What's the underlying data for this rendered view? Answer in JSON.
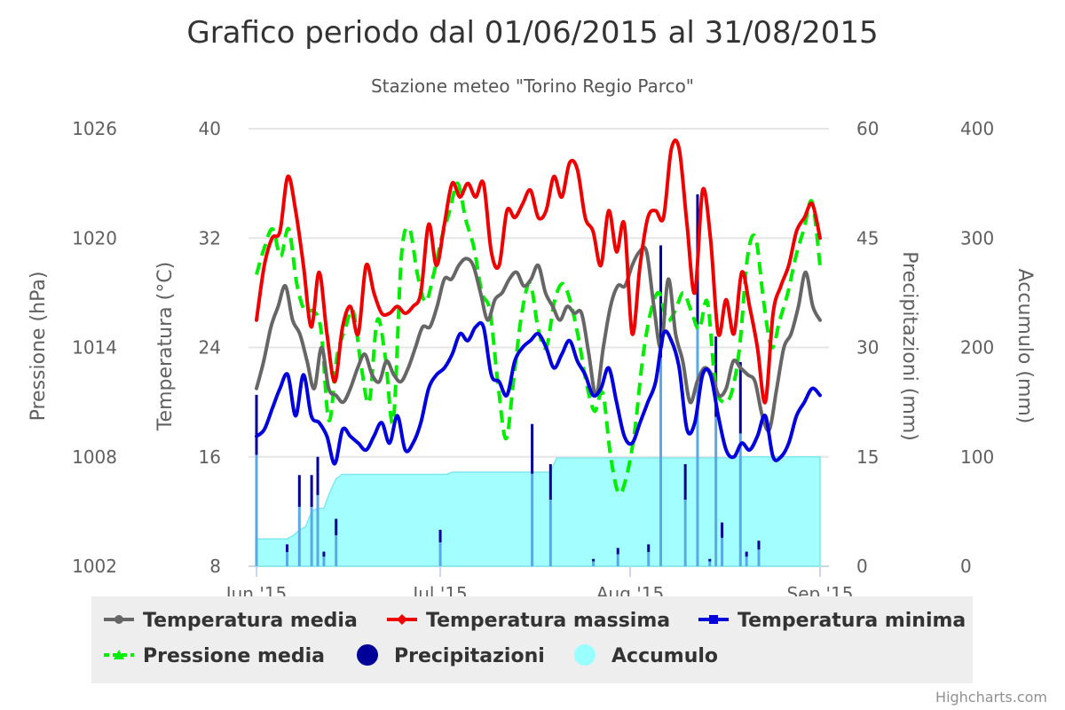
{
  "chart_data": {
    "type": "line",
    "title": "Grafico periodo dal 01/06/2015 al 31/08/2015",
    "subtitle": "Stazione meteo \"Torino Regio Parco\"",
    "credits": "Highcharts.com",
    "x_ticks": [
      "Jun '15",
      "Jul '15",
      "Aug '15",
      "Sep '15"
    ],
    "axes": {
      "pressure": {
        "title": "Pressione (hPa)",
        "min": 1002,
        "max": 1026,
        "ticks": [
          "1002",
          "1008",
          "1014",
          "1020",
          "1026"
        ]
      },
      "temperature": {
        "title": "Temperatura (°C)",
        "min": 8,
        "max": 40,
        "ticks": [
          "8",
          "16",
          "24",
          "32",
          "40"
        ]
      },
      "precipitation": {
        "title": "Precipitazioni (mm)",
        "min": 0,
        "max": 60,
        "ticks": [
          "0",
          "15",
          "30",
          "45",
          "60"
        ]
      },
      "accumulation": {
        "title": "Accumulo (mm)",
        "min": 0,
        "max": 400,
        "ticks": [
          "0",
          "100",
          "200",
          "300",
          "400"
        ]
      }
    },
    "legend": {
      "position": "bottom",
      "items": [
        "Temperatura media",
        "Temperatura massima",
        "Temperatura minima",
        "Pressione media",
        "Precipitazioni",
        "Accumulo"
      ]
    },
    "series": [
      {
        "name": "Temperatura media",
        "axis": "temperature",
        "color": "#666666",
        "values": [
          21,
          23,
          25.5,
          27,
          28.5,
          26,
          25,
          23,
          21,
          24,
          21,
          20.5,
          20,
          21,
          22.5,
          23.5,
          22,
          21.5,
          23,
          22,
          21.5,
          22.5,
          24,
          25.5,
          25.5,
          27,
          29,
          29,
          30,
          30.5,
          30,
          28,
          26,
          27.5,
          28,
          29,
          29.5,
          28.5,
          29,
          30,
          28,
          27,
          26,
          27,
          26.5,
          26.5,
          23.5,
          20.5,
          24,
          27,
          28.5,
          28.5,
          30,
          31,
          31,
          27,
          24,
          29,
          25,
          23,
          20,
          21.5,
          22.5,
          22,
          20.5,
          21,
          23,
          22.5,
          22,
          21.5,
          19,
          18,
          21,
          24,
          25,
          27,
          29.5,
          27,
          26
        ]
      },
      {
        "name": "Temperatura massima",
        "axis": "temperature",
        "color": "#ee0000",
        "values": [
          26,
          30,
          32,
          32.5,
          36.5,
          34,
          30,
          25.5,
          29.5,
          25,
          21.5,
          25.5,
          27,
          25,
          30,
          28,
          26.5,
          26.5,
          27,
          26.5,
          27,
          28,
          33,
          30,
          33,
          36,
          35,
          36,
          35,
          36,
          31,
          30,
          34,
          33.5,
          34.5,
          35.5,
          33.5,
          34,
          36.5,
          35,
          37.5,
          37,
          33.5,
          32.5,
          30,
          34,
          31,
          33,
          25,
          30,
          33.5,
          34,
          33.5,
          38.5,
          38.5,
          33,
          28,
          35.5,
          32,
          25,
          27.5,
          25,
          29.5,
          27,
          24,
          20,
          26.5,
          28.5,
          30,
          32.5,
          33.5,
          34.5,
          32
        ]
      },
      {
        "name": "Temperatura minima",
        "axis": "temperature",
        "color": "#0000dd",
        "values": [
          17.5,
          18,
          19.5,
          21,
          22,
          19,
          22,
          19,
          18.5,
          17.5,
          15.5,
          18,
          17.5,
          17,
          16.5,
          17.5,
          18.5,
          17,
          19,
          16.5,
          17,
          18.5,
          21,
          22,
          22.5,
          23.5,
          25,
          24.5,
          25.5,
          25.5,
          22,
          21.5,
          20.5,
          23,
          24,
          24.5,
          25,
          24,
          22.5,
          23.5,
          24.5,
          23,
          22,
          20.5,
          21,
          22.5,
          20,
          17.5,
          17,
          18.5,
          20,
          21.5,
          25,
          24.5,
          22.5,
          18,
          18.5,
          22,
          22,
          19,
          16.5,
          16,
          17,
          16.5,
          17.5,
          19,
          16,
          16,
          17,
          19,
          20,
          21,
          20.5
        ]
      },
      {
        "name": "Pressione media",
        "axis": "pressure",
        "color": "#00ee00",
        "dashed": true,
        "values": [
          1018,
          1019.5,
          1020.5,
          1019,
          1020.5,
          1017.5,
          1016,
          1016,
          1015,
          1010,
          1013.5,
          1015,
          1016,
          1013,
          1011,
          1015.5,
          1013.5,
          1010,
          1019,
          1020.5,
          1018,
          1016.5,
          1018,
          1020,
          1021.5,
          1023,
          1021,
          1019.5,
          1017,
          1016,
          1012,
          1009,
          1012.5,
          1016,
          1017.5,
          1015,
          1014,
          1016.5,
          1017.5,
          1016.5,
          1014.5,
          1012,
          1010.5,
          1011.5,
          1008,
          1006,
          1007,
          1009.5,
          1013.5,
          1016,
          1017,
          1015.5,
          1016,
          1017,
          1016,
          1015,
          1016.5,
          1012,
          1011,
          1011.5,
          1014,
          1019,
          1020,
          1016.5,
          1014,
          1015.5,
          1017,
          1019,
          1020.5,
          1022,
          1018.5
        ]
      },
      {
        "name": "Precipitazioni",
        "axis": "precipitation",
        "color": "#000099",
        "points": [
          [
            0,
            23.5
          ],
          [
            5,
            3
          ],
          [
            7,
            12.5
          ],
          [
            9,
            12.5
          ],
          [
            10,
            15
          ],
          [
            11,
            2
          ],
          [
            13,
            6.5
          ],
          [
            30,
            5
          ],
          [
            45,
            19.5
          ],
          [
            48,
            14
          ],
          [
            55,
            1
          ],
          [
            59,
            2.5
          ],
          [
            64,
            3
          ],
          [
            66,
            44
          ],
          [
            70,
            14
          ],
          [
            72,
            51
          ],
          [
            74,
            1
          ],
          [
            75,
            31.5
          ],
          [
            76,
            6
          ],
          [
            79,
            28
          ],
          [
            80,
            2
          ],
          [
            82,
            3.5
          ]
        ]
      },
      {
        "name": "Accumulo",
        "axis": "accumulation",
        "color": "#99ffff",
        "values": [
          25,
          25,
          25,
          25,
          25,
          25,
          28,
          33,
          36,
          50,
          53,
          53,
          68,
          80,
          84,
          84,
          84,
          84,
          84,
          84,
          84,
          84,
          84,
          84,
          84,
          84,
          84,
          84,
          84,
          84,
          84,
          84,
          86,
          86,
          86,
          86,
          86,
          86,
          86,
          86,
          86,
          86,
          86,
          86,
          86,
          86,
          86,
          86,
          86,
          99,
          99,
          99,
          99,
          99,
          99,
          99,
          99,
          99,
          99,
          99,
          99,
          99,
          99,
          99,
          99,
          99,
          99,
          99,
          99,
          99,
          99,
          99,
          99,
          99,
          99,
          99,
          99,
          99,
          100,
          100,
          100,
          100,
          100,
          100,
          100,
          100,
          100,
          100,
          100,
          100,
          100,
          100,
          100
        ]
      }
    ]
  }
}
